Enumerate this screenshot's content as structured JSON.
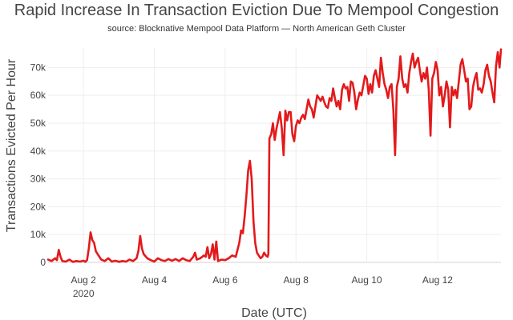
{
  "chart_data": {
    "type": "line",
    "title": "Rapid Increase In Transaction Eviction Due To Mempool Congestion",
    "subtitle": "source: Blocknative Mempool Data Platform — North American Geth Cluster",
    "xlabel": "Date (UTC)",
    "ylabel": "Transactions Evicted Per Hour",
    "x_ticks": [
      {
        "day": 2,
        "label": "Aug 2",
        "sublabel": "2020"
      },
      {
        "day": 4,
        "label": "Aug 4",
        "sublabel": ""
      },
      {
        "day": 6,
        "label": "Aug 6",
        "sublabel": ""
      },
      {
        "day": 8,
        "label": "Aug 8",
        "sublabel": ""
      },
      {
        "day": 10,
        "label": "Aug 10",
        "sublabel": ""
      },
      {
        "day": 12,
        "label": "Aug 12",
        "sublabel": ""
      }
    ],
    "y_ticks": [
      {
        "value": 0,
        "label": "0"
      },
      {
        "value": 10000,
        "label": "10k"
      },
      {
        "value": 20000,
        "label": "20k"
      },
      {
        "value": 30000,
        "label": "30k"
      },
      {
        "value": 40000,
        "label": "40k"
      },
      {
        "value": 50000,
        "label": "50k"
      },
      {
        "value": 60000,
        "label": "60k"
      },
      {
        "value": 70000,
        "label": "70k"
      }
    ],
    "xlim": [
      1.0,
      13.79
    ],
    "ylim": [
      0,
      77000
    ],
    "grid": true,
    "line_color": "#e31a1c",
    "series": [
      {
        "points": [
          [
            1.0,
            1000
          ],
          [
            1.1,
            500
          ],
          [
            1.2,
            1500
          ],
          [
            1.25,
            800
          ],
          [
            1.3,
            4500
          ],
          [
            1.35,
            2000
          ],
          [
            1.4,
            500
          ],
          [
            1.5,
            300
          ],
          [
            1.6,
            1000
          ],
          [
            1.7,
            200
          ],
          [
            1.8,
            500
          ],
          [
            1.9,
            300
          ],
          [
            2.0,
            600
          ],
          [
            2.05,
            200
          ],
          [
            2.1,
            800
          ],
          [
            2.15,
            5000
          ],
          [
            2.2,
            10800
          ],
          [
            2.25,
            8000
          ],
          [
            2.3,
            7000
          ],
          [
            2.35,
            4000
          ],
          [
            2.4,
            3000
          ],
          [
            2.5,
            1000
          ],
          [
            2.6,
            500
          ],
          [
            2.7,
            1500
          ],
          [
            2.8,
            300
          ],
          [
            2.9,
            600
          ],
          [
            3.0,
            200
          ],
          [
            3.1,
            500
          ],
          [
            3.2,
            300
          ],
          [
            3.3,
            1000
          ],
          [
            3.4,
            500
          ],
          [
            3.5,
            1500
          ],
          [
            3.55,
            4000
          ],
          [
            3.6,
            9500
          ],
          [
            3.65,
            5000
          ],
          [
            3.7,
            3000
          ],
          [
            3.8,
            1500
          ],
          [
            3.9,
            800
          ],
          [
            4.0,
            300
          ],
          [
            4.1,
            1500
          ],
          [
            4.2,
            800
          ],
          [
            4.3,
            500
          ],
          [
            4.4,
            1200
          ],
          [
            4.5,
            600
          ],
          [
            4.6,
            1200
          ],
          [
            4.7,
            500
          ],
          [
            4.8,
            1500
          ],
          [
            4.9,
            800
          ],
          [
            5.0,
            500
          ],
          [
            5.1,
            2000
          ],
          [
            5.15,
            3500
          ],
          [
            5.2,
            1000
          ],
          [
            5.3,
            1500
          ],
          [
            5.4,
            2500
          ],
          [
            5.45,
            2000
          ],
          [
            5.5,
            5500
          ],
          [
            5.55,
            1500
          ],
          [
            5.6,
            3000
          ],
          [
            5.65,
            6500
          ],
          [
            5.7,
            1000
          ],
          [
            5.75,
            7500
          ],
          [
            5.8,
            500
          ],
          [
            5.9,
            1000
          ],
          [
            6.0,
            800
          ],
          [
            6.1,
            1500
          ],
          [
            6.2,
            2500
          ],
          [
            6.3,
            2000
          ],
          [
            6.4,
            7000
          ],
          [
            6.45,
            11500
          ],
          [
            6.5,
            10500
          ],
          [
            6.55,
            16500
          ],
          [
            6.6,
            24000
          ],
          [
            6.65,
            33000
          ],
          [
            6.7,
            36500
          ],
          [
            6.75,
            30000
          ],
          [
            6.8,
            15000
          ],
          [
            6.85,
            7000
          ],
          [
            6.9,
            3500
          ],
          [
            6.95,
            2500
          ],
          [
            7.0,
            1500
          ],
          [
            7.05,
            2000
          ],
          [
            7.1,
            3500
          ],
          [
            7.15,
            2500
          ],
          [
            7.2,
            2000
          ],
          [
            7.22,
            3000
          ],
          [
            7.25,
            44500
          ],
          [
            7.3,
            46000
          ],
          [
            7.35,
            50000
          ],
          [
            7.4,
            44000
          ],
          [
            7.45,
            48000
          ],
          [
            7.5,
            51000
          ],
          [
            7.55,
            54000
          ],
          [
            7.6,
            48000
          ],
          [
            7.65,
            38500
          ],
          [
            7.7,
            54500
          ],
          [
            7.75,
            51000
          ],
          [
            7.8,
            54000
          ],
          [
            7.85,
            54000
          ],
          [
            7.9,
            46000
          ],
          [
            7.95,
            43500
          ],
          [
            8.0,
            49000
          ],
          [
            8.05,
            51000
          ],
          [
            8.1,
            50000
          ],
          [
            8.15,
            52000
          ],
          [
            8.2,
            53000
          ],
          [
            8.25,
            51500
          ],
          [
            8.3,
            55000
          ],
          [
            8.35,
            58500
          ],
          [
            8.4,
            56000
          ],
          [
            8.45,
            55000
          ],
          [
            8.5,
            52000
          ],
          [
            8.55,
            56000
          ],
          [
            8.6,
            60000
          ],
          [
            8.65,
            59000
          ],
          [
            8.7,
            58000
          ],
          [
            8.75,
            59500
          ],
          [
            8.8,
            57500
          ],
          [
            8.85,
            56000
          ],
          [
            8.9,
            55500
          ],
          [
            8.95,
            59000
          ],
          [
            9.0,
            58000
          ],
          [
            9.05,
            62500
          ],
          [
            9.1,
            59000
          ],
          [
            9.15,
            56000
          ],
          [
            9.2,
            58000
          ],
          [
            9.25,
            55000
          ],
          [
            9.3,
            62000
          ],
          [
            9.35,
            64000
          ],
          [
            9.4,
            62500
          ],
          [
            9.45,
            63000
          ],
          [
            9.5,
            58000
          ],
          [
            9.55,
            65000
          ],
          [
            9.6,
            64500
          ],
          [
            9.65,
            61000
          ],
          [
            9.7,
            55000
          ],
          [
            9.75,
            58500
          ],
          [
            9.8,
            61000
          ],
          [
            9.85,
            60000
          ],
          [
            9.9,
            63500
          ],
          [
            9.95,
            67000
          ],
          [
            10.0,
            66000
          ],
          [
            10.05,
            60500
          ],
          [
            10.1,
            64000
          ],
          [
            10.15,
            61000
          ],
          [
            10.2,
            67000
          ],
          [
            10.25,
            69000
          ],
          [
            10.3,
            66000
          ],
          [
            10.35,
            63000
          ],
          [
            10.4,
            73500
          ],
          [
            10.45,
            68000
          ],
          [
            10.5,
            64000
          ],
          [
            10.55,
            62000
          ],
          [
            10.6,
            59000
          ],
          [
            10.65,
            63000
          ],
          [
            10.7,
            64000
          ],
          [
            10.75,
            55000
          ],
          [
            10.8,
            38500
          ],
          [
            10.85,
            63000
          ],
          [
            10.9,
            66000
          ],
          [
            10.95,
            74000
          ],
          [
            11.0,
            66000
          ],
          [
            11.05,
            63000
          ],
          [
            11.1,
            64000
          ],
          [
            11.15,
            61000
          ],
          [
            11.2,
            68000
          ],
          [
            11.25,
            72000
          ],
          [
            11.3,
            75000
          ],
          [
            11.35,
            70000
          ],
          [
            11.4,
            72000
          ],
          [
            11.45,
            73500
          ],
          [
            11.5,
            69000
          ],
          [
            11.55,
            65000
          ],
          [
            11.6,
            68000
          ],
          [
            11.65,
            66000
          ],
          [
            11.7,
            70000
          ],
          [
            11.75,
            62000
          ],
          [
            11.8,
            45500
          ],
          [
            11.85,
            66000
          ],
          [
            11.9,
            68000
          ],
          [
            11.95,
            72000
          ],
          [
            12.0,
            69000
          ],
          [
            12.05,
            60000
          ],
          [
            12.1,
            63000
          ],
          [
            12.15,
            56000
          ],
          [
            12.2,
            60000
          ],
          [
            12.25,
            65000
          ],
          [
            12.3,
            62000
          ],
          [
            12.35,
            48500
          ],
          [
            12.4,
            63000
          ],
          [
            12.45,
            60000
          ],
          [
            12.5,
            62000
          ],
          [
            12.55,
            59000
          ],
          [
            12.6,
            65000
          ],
          [
            12.65,
            71000
          ],
          [
            12.7,
            73000
          ],
          [
            12.75,
            69000
          ],
          [
            12.8,
            65000
          ],
          [
            12.85,
            66000
          ],
          [
            12.9,
            55000
          ],
          [
            12.95,
            56000
          ],
          [
            13.0,
            63000
          ],
          [
            13.05,
            66000
          ],
          [
            13.1,
            68000
          ],
          [
            13.15,
            62000
          ],
          [
            13.2,
            62500
          ],
          [
            13.25,
            61000
          ],
          [
            13.3,
            64000
          ],
          [
            13.35,
            69000
          ],
          [
            13.4,
            71000
          ],
          [
            13.45,
            67000
          ],
          [
            13.5,
            65000
          ],
          [
            13.55,
            61000
          ],
          [
            13.6,
            57500
          ],
          [
            13.65,
            70500
          ],
          [
            13.7,
            75500
          ],
          [
            13.75,
            70000
          ],
          [
            13.79,
            76500
          ]
        ]
      }
    ]
  }
}
